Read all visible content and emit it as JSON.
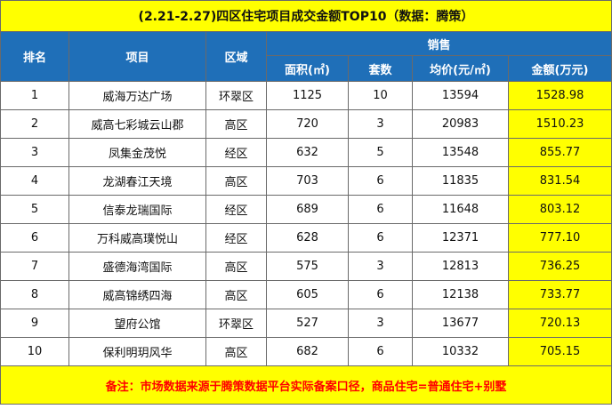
{
  "title": "(2.21-2.27)四区住宅项目成交金额TOP10（数据：腾策）",
  "headers": {
    "rank": "排名",
    "project": "项目",
    "area": "区域",
    "sales": "销售",
    "size": "面积(㎡)",
    "units": "套数",
    "avg_price": "均价(元/㎡)",
    "amount": "金额(万元)"
  },
  "rows": [
    {
      "rank": "1",
      "project": "威海万达广场",
      "area": "环翠区",
      "size": "1125",
      "units": "10",
      "avg_price": "13594",
      "amount": "1528.98"
    },
    {
      "rank": "2",
      "project": "威高七彩城云山郡",
      "area": "高区",
      "size": "720",
      "units": "3",
      "avg_price": "20983",
      "amount": "1510.23"
    },
    {
      "rank": "3",
      "project": "凤集金茂悦",
      "area": "经区",
      "size": "632",
      "units": "5",
      "avg_price": "13548",
      "amount": "855.77"
    },
    {
      "rank": "4",
      "project": "龙湖春江天境",
      "area": "高区",
      "size": "703",
      "units": "6",
      "avg_price": "11835",
      "amount": "831.54"
    },
    {
      "rank": "5",
      "project": "信泰龙瑞国际",
      "area": "经区",
      "size": "689",
      "units": "6",
      "avg_price": "11648",
      "amount": "803.12"
    },
    {
      "rank": "6",
      "project": "万科威高璞悦山",
      "area": "经区",
      "size": "628",
      "units": "6",
      "avg_price": "12371",
      "amount": "777.10"
    },
    {
      "rank": "7",
      "project": "盛德海湾国际",
      "area": "高区",
      "size": "575",
      "units": "3",
      "avg_price": "12813",
      "amount": "736.25"
    },
    {
      "rank": "8",
      "project": "威高锦绣四海",
      "area": "高区",
      "size": "605",
      "units": "6",
      "avg_price": "12138",
      "amount": "733.77"
    },
    {
      "rank": "9",
      "project": "望府公馆",
      "area": "环翠区",
      "size": "527",
      "units": "3",
      "avg_price": "13677",
      "amount": "720.13"
    },
    {
      "rank": "10",
      "project": "保利明玥风华",
      "area": "高区",
      "size": "682",
      "units": "6",
      "avg_price": "10332",
      "amount": "705.15"
    }
  ],
  "footnote": "备注：市场数据来源于腾策数据平台实际备案口径，商品住宅=普通住宅+别墅",
  "colors": {
    "header_bg": "#1f6fb8",
    "highlight": "#ffff00",
    "footnote_text": "#ff0000"
  }
}
